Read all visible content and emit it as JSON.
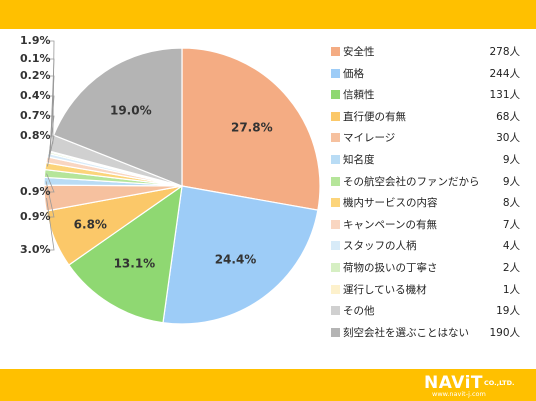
{
  "colors": {
    "band": "#ffc000",
    "slices": [
      "#f4ac83",
      "#9dccf7",
      "#8fd872",
      "#fbc869",
      "#f6c19f",
      "#b9dcf5",
      "#b5e59a",
      "#fcd47a",
      "#f9d6c1",
      "#d8ebf8",
      "#d6efc3",
      "#fdf1cc",
      "#d0d0d0",
      "#b4b4b4"
    ]
  },
  "chart_data": {
    "type": "pie",
    "title": "",
    "categories": [
      "安全性",
      "価格",
      "信頼性",
      "直行便の有無",
      "マイレージ",
      "知名度",
      "その航空会社のファンだから",
      "機内サービスの内容",
      "キャンペーンの有無",
      "スタッフの人柄",
      "荷物の扱いの丁寧さ",
      "運行している機材",
      "その他",
      "刻空会社を選ぶことはない"
    ],
    "values": [
      278,
      244,
      131,
      68,
      30,
      9,
      9,
      8,
      7,
      4,
      2,
      1,
      19,
      190
    ],
    "counts": [
      "278人",
      "244人",
      "131人",
      "68人",
      "30人",
      "9人",
      "9人",
      "8人",
      "7人",
      "4人",
      "2人",
      "1人",
      "19人",
      "190人"
    ],
    "percent_labels": [
      "27.8%",
      "24.4%",
      "13.1%",
      "6.8%",
      "3.0%",
      "0.9%",
      "0.9%",
      "0.8%",
      "0.7%",
      "0.4%",
      "0.2%",
      "0.1%",
      "1.9%",
      "19.0%"
    ],
    "legend_position": "right"
  },
  "brand": {
    "logo": "NAViT",
    "company": "CO.,LTD.",
    "url": "www.navit-j.com"
  }
}
